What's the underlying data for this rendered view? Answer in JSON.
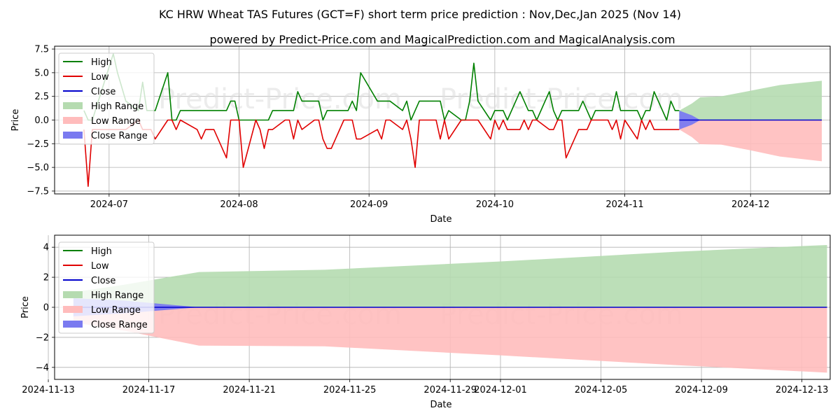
{
  "title": "KC HRW Wheat TAS Futures (GCT=F) short term price prediction : Nov,Dec,Jan 2025 (Nov 14)",
  "subtitle": "powered by Predict-Price.com and MagicalPrediction.com and MagicalAnalysis.com",
  "watermark": "Predict-Price.com",
  "colors": {
    "high": "#008000",
    "low": "#e00000",
    "close": "#0000cc",
    "high_range": "#b5dbb0",
    "low_range": "#ffbcbc",
    "close_range": "#7a7af0"
  },
  "chart_data": [
    {
      "type": "line",
      "xlabel": "Date",
      "ylabel": "Price",
      "xlim": [
        "2024-06-18",
        "2024-12-20"
      ],
      "ylim": [
        -7.8,
        7.8
      ],
      "grid": true,
      "legend_position": "top-left",
      "legend": [
        "High",
        "Low",
        "Close",
        "High Range",
        "Low Range",
        "Close Range"
      ],
      "x_ticks": [
        "2024-07-01",
        "2024-08-01",
        "2024-09-01",
        "2024-10-01",
        "2024-11-01",
        "2024-12-01"
      ],
      "x_tick_labels": [
        "2024-07",
        "2024-08",
        "2024-09",
        "2024-10",
        "2024-11",
        "2024-12"
      ],
      "y_ticks": [
        -7.5,
        -5.0,
        -2.5,
        0.0,
        2.5,
        5.0,
        7.5
      ],
      "y_tick_labels": [
        "−7.5",
        "−5.0",
        "−2.5",
        "0.0",
        "2.5",
        "5.0",
        "7.5"
      ],
      "series": [
        {
          "name": "High",
          "x": [
            "2024-06-25",
            "2024-06-26",
            "2024-06-27",
            "2024-07-02",
            "2024-07-03",
            "2024-07-05",
            "2024-07-08",
            "2024-07-09",
            "2024-07-10",
            "2024-07-11",
            "2024-07-12",
            "2024-07-15",
            "2024-07-16",
            "2024-07-17",
            "2024-07-18",
            "2024-07-22",
            "2024-07-23",
            "2024-07-24",
            "2024-07-25",
            "2024-07-26",
            "2024-07-29",
            "2024-07-30",
            "2024-07-31",
            "2024-08-01",
            "2024-08-02",
            "2024-08-05",
            "2024-08-06",
            "2024-08-07",
            "2024-08-08",
            "2024-08-09",
            "2024-08-12",
            "2024-08-13",
            "2024-08-14",
            "2024-08-15",
            "2024-08-16",
            "2024-08-19",
            "2024-08-20",
            "2024-08-21",
            "2024-08-22",
            "2024-08-23",
            "2024-08-26",
            "2024-08-27",
            "2024-08-28",
            "2024-08-29",
            "2024-08-30",
            "2024-09-03",
            "2024-09-04",
            "2024-09-05",
            "2024-09-06",
            "2024-09-09",
            "2024-09-10",
            "2024-09-11",
            "2024-09-12",
            "2024-09-13",
            "2024-09-16",
            "2024-09-17",
            "2024-09-18",
            "2024-09-19",
            "2024-09-20",
            "2024-09-23",
            "2024-09-24",
            "2024-09-25",
            "2024-09-26",
            "2024-09-27",
            "2024-09-30",
            "2024-10-01",
            "2024-10-02",
            "2024-10-03",
            "2024-10-04",
            "2024-10-07",
            "2024-10-08",
            "2024-10-09",
            "2024-10-10",
            "2024-10-11",
            "2024-10-14",
            "2024-10-15",
            "2024-10-16",
            "2024-10-17",
            "2024-10-18",
            "2024-10-21",
            "2024-10-22",
            "2024-10-23",
            "2024-10-24",
            "2024-10-25",
            "2024-10-28",
            "2024-10-29",
            "2024-10-30",
            "2024-10-31",
            "2024-11-01",
            "2024-11-04",
            "2024-11-05",
            "2024-11-06",
            "2024-11-07",
            "2024-11-08",
            "2024-11-11",
            "2024-11-12",
            "2024-11-13",
            "2024-11-14"
          ],
          "values": [
            1,
            0,
            0,
            7,
            5,
            2,
            1,
            4,
            1,
            1,
            1,
            5,
            0,
            0,
            1,
            1,
            1,
            1,
            1,
            1,
            1,
            2,
            2,
            0,
            0,
            0,
            0,
            0,
            0,
            1,
            1,
            1,
            1,
            3,
            2,
            2,
            2,
            0,
            1,
            1,
            1,
            1,
            2,
            1,
            5,
            2,
            2,
            2,
            2,
            1,
            2,
            0,
            1,
            2,
            2,
            2,
            2,
            0,
            1,
            0,
            0,
            2,
            6,
            2,
            0,
            1,
            1,
            1,
            0,
            3,
            2,
            1,
            1,
            0,
            3,
            1,
            0,
            1,
            1,
            1,
            2,
            1,
            0,
            1,
            1,
            1,
            3,
            1,
            1,
            1,
            0,
            1,
            1,
            3,
            0,
            2,
            1,
            1
          ]
        },
        {
          "name": "Low",
          "x": [
            "2024-06-25",
            "2024-06-26",
            "2024-06-27",
            "2024-07-02",
            "2024-07-03",
            "2024-07-05",
            "2024-07-08",
            "2024-07-09",
            "2024-07-10",
            "2024-07-11",
            "2024-07-12",
            "2024-07-15",
            "2024-07-16",
            "2024-07-17",
            "2024-07-18",
            "2024-07-22",
            "2024-07-23",
            "2024-07-24",
            "2024-07-25",
            "2024-07-26",
            "2024-07-29",
            "2024-07-30",
            "2024-07-31",
            "2024-08-01",
            "2024-08-02",
            "2024-08-05",
            "2024-08-06",
            "2024-08-07",
            "2024-08-08",
            "2024-08-09",
            "2024-08-12",
            "2024-08-13",
            "2024-08-14",
            "2024-08-15",
            "2024-08-16",
            "2024-08-19",
            "2024-08-20",
            "2024-08-21",
            "2024-08-22",
            "2024-08-23",
            "2024-08-26",
            "2024-08-27",
            "2024-08-28",
            "2024-08-29",
            "2024-08-30",
            "2024-09-03",
            "2024-09-04",
            "2024-09-05",
            "2024-09-06",
            "2024-09-09",
            "2024-09-10",
            "2024-09-11",
            "2024-09-12",
            "2024-09-13",
            "2024-09-16",
            "2024-09-17",
            "2024-09-18",
            "2024-09-19",
            "2024-09-20",
            "2024-09-23",
            "2024-09-24",
            "2024-09-25",
            "2024-09-26",
            "2024-09-27",
            "2024-09-30",
            "2024-10-01",
            "2024-10-02",
            "2024-10-03",
            "2024-10-04",
            "2024-10-07",
            "2024-10-08",
            "2024-10-09",
            "2024-10-10",
            "2024-10-11",
            "2024-10-14",
            "2024-10-15",
            "2024-10-16",
            "2024-10-17",
            "2024-10-18",
            "2024-10-21",
            "2024-10-22",
            "2024-10-23",
            "2024-10-24",
            "2024-10-25",
            "2024-10-28",
            "2024-10-29",
            "2024-10-30",
            "2024-10-31",
            "2024-11-01",
            "2024-11-04",
            "2024-11-05",
            "2024-11-06",
            "2024-11-07",
            "2024-11-08",
            "2024-11-11",
            "2024-11-12",
            "2024-11-13",
            "2024-11-14"
          ],
          "values": [
            -1,
            -7,
            -1,
            -1,
            -1,
            -1,
            0,
            -1,
            -1,
            -1,
            -2,
            0,
            0,
            -1,
            0,
            -1,
            -2,
            -1,
            -1,
            -1,
            -4,
            0,
            0,
            0,
            -5,
            0,
            -1,
            -3,
            -1,
            -1,
            0,
            0,
            -2,
            0,
            -1,
            0,
            0,
            -2,
            -3,
            -3,
            0,
            0,
            0,
            -2,
            -2,
            -1,
            -2,
            0,
            0,
            -1,
            0,
            -2,
            -5,
            0,
            0,
            0,
            -2,
            0,
            -2,
            0,
            0,
            0,
            0,
            0,
            -2,
            0,
            -1,
            0,
            -1,
            -1,
            0,
            -1,
            0,
            0,
            -1,
            -1,
            0,
            0,
            -4,
            -1,
            -1,
            -1,
            0,
            0,
            0,
            -1,
            0,
            -2,
            0,
            -2,
            0,
            -1,
            0,
            -1,
            -1,
            -1,
            -1,
            -1
          ]
        },
        {
          "name": "Close",
          "x": [
            "2024-11-14",
            "2024-12-18"
          ],
          "values": [
            0,
            0
          ]
        }
      ],
      "ranges": [
        {
          "name": "High Range",
          "x": [
            "2024-11-14",
            "2024-11-17",
            "2024-11-19",
            "2024-11-24",
            "2024-12-01",
            "2024-12-08",
            "2024-12-18"
          ],
          "upper": [
            1.0,
            1.75,
            2.4,
            2.5,
            3.1,
            3.7,
            4.15
          ],
          "lower": [
            0,
            0,
            0,
            0,
            0,
            0,
            0
          ]
        },
        {
          "name": "Low Range",
          "x": [
            "2024-11-14",
            "2024-11-17",
            "2024-11-19",
            "2024-11-24",
            "2024-12-01",
            "2024-12-08",
            "2024-12-18"
          ],
          "upper": [
            0,
            0,
            0,
            0,
            0,
            0,
            0
          ],
          "lower": [
            -1.0,
            -1.8,
            -2.55,
            -2.6,
            -3.2,
            -3.85,
            -4.35
          ]
        },
        {
          "name": "Close Range",
          "x": [
            "2024-11-14",
            "2024-11-17",
            "2024-11-19"
          ],
          "upper": [
            1.0,
            0.5,
            0
          ],
          "lower": [
            -1.0,
            -0.5,
            0
          ]
        }
      ]
    },
    {
      "type": "area",
      "xlabel": "Date",
      "ylabel": "Price",
      "xlim": [
        "2024-11-13 06:00",
        "2024-12-14 03:00"
      ],
      "ylim": [
        -4.8,
        4.8
      ],
      "grid": true,
      "legend_position": "top-left",
      "legend": [
        "High",
        "Low",
        "Close",
        "High Range",
        "Low Range",
        "Close Range"
      ],
      "x_ticks": [
        "2024-11-13",
        "2024-11-17",
        "2024-11-21",
        "2024-11-25",
        "2024-11-29",
        "2024-12-01",
        "2024-12-05",
        "2024-12-09",
        "2024-12-13"
      ],
      "x_tick_labels": [
        "2024-11-13",
        "2024-11-17",
        "2024-11-21",
        "2024-11-25",
        "2024-11-29",
        "2024-12-01",
        "2024-12-05",
        "2024-12-09",
        "2024-12-13"
      ],
      "y_ticks": [
        -4,
        -2,
        0,
        2,
        4
      ],
      "y_tick_labels": [
        "−4",
        "−2",
        "0",
        "2",
        "4"
      ],
      "series": [
        {
          "name": "Close",
          "x": [
            "2024-11-14",
            "2024-12-14"
          ],
          "values": [
            0,
            0
          ]
        }
      ],
      "ranges": [
        {
          "name": "High Range",
          "x": [
            "2024-11-14",
            "2024-11-16",
            "2024-11-19",
            "2024-11-24",
            "2024-12-01",
            "2024-12-08",
            "2024-12-14"
          ],
          "upper": [
            1.0,
            1.5,
            2.35,
            2.5,
            3.05,
            3.7,
            4.15
          ],
          "lower": [
            0,
            0,
            0,
            0,
            0,
            0,
            0
          ]
        },
        {
          "name": "Low Range",
          "x": [
            "2024-11-14",
            "2024-11-16",
            "2024-11-19",
            "2024-11-24",
            "2024-12-01",
            "2024-12-08",
            "2024-12-14"
          ],
          "upper": [
            0,
            0,
            0,
            0,
            0,
            0,
            0
          ],
          "lower": [
            -1.0,
            -1.55,
            -2.55,
            -2.6,
            -3.2,
            -3.85,
            -4.35
          ]
        },
        {
          "name": "Close Range",
          "x": [
            "2024-11-14",
            "2024-11-16",
            "2024-11-19"
          ],
          "upper": [
            0.6,
            0.45,
            0
          ],
          "lower": [
            -0.6,
            -0.4,
            0
          ]
        }
      ]
    }
  ]
}
